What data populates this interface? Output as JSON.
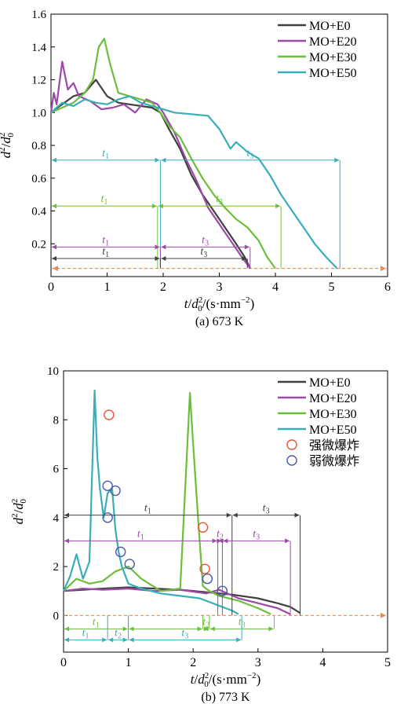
{
  "colors": {
    "MO+E0": "#404040",
    "MO+E20": "#9b4aa8",
    "MO+E30": "#6cbf3c",
    "MO+E50": "#3aaeb8",
    "strong": "#e8553a",
    "weak": "#4a5aa8",
    "dashed": "#f08a4b"
  },
  "chart_data": [
    {
      "type": "line",
      "caption": "(a) 673 K",
      "xlabel": "t/d0²/(s·mm⁻²)",
      "ylabel": "d²/d0²",
      "xlim": [
        0,
        6
      ],
      "ylim": [
        0,
        1.6
      ],
      "xticks": [
        "0",
        "1",
        "2",
        "3",
        "4",
        "5",
        "6"
      ],
      "yticks": [
        "0.2",
        "0.4",
        "0.6",
        "0.8",
        "1.0",
        "1.2",
        "1.4",
        "1.6"
      ],
      "legend_position": "top-right",
      "series": [
        {
          "name": "MO+E0",
          "x": [
            0,
            0.2,
            0.4,
            0.6,
            0.8,
            1.0,
            1.2,
            1.4,
            1.6,
            1.8,
            1.95,
            2.1,
            2.3,
            2.5,
            2.7,
            2.9,
            3.1,
            3.3,
            3.45,
            3.55
          ],
          "y": [
            1.0,
            1.05,
            1.1,
            1.12,
            1.2,
            1.1,
            1.06,
            1.05,
            1.04,
            1.03,
            1.0,
            0.9,
            0.78,
            0.62,
            0.5,
            0.4,
            0.3,
            0.2,
            0.12,
            0.05
          ]
        },
        {
          "name": "MO+E20",
          "x": [
            0,
            0.05,
            0.1,
            0.2,
            0.3,
            0.4,
            0.5,
            0.7,
            0.9,
            1.1,
            1.3,
            1.5,
            1.7,
            1.9,
            2.0,
            2.2,
            2.4,
            2.6,
            2.8,
            3.0,
            3.2,
            3.4,
            3.55
          ],
          "y": [
            1.0,
            1.12,
            1.05,
            1.31,
            1.14,
            1.18,
            1.1,
            1.07,
            1.02,
            1.03,
            1.05,
            1.0,
            1.08,
            1.05,
            1.0,
            0.88,
            0.72,
            0.58,
            0.42,
            0.32,
            0.22,
            0.12,
            0.05
          ]
        },
        {
          "name": "MO+E30",
          "x": [
            0,
            0.2,
            0.4,
            0.6,
            0.75,
            0.85,
            0.95,
            1.05,
            1.2,
            1.4,
            1.6,
            1.8,
            1.95,
            2.1,
            2.3,
            2.5,
            2.7,
            2.9,
            3.1,
            3.3,
            3.5,
            3.7,
            3.85,
            4.0
          ],
          "y": [
            1.0,
            1.03,
            1.06,
            1.12,
            1.2,
            1.4,
            1.45,
            1.3,
            1.12,
            1.1,
            1.08,
            1.06,
            1.0,
            0.92,
            0.85,
            0.72,
            0.6,
            0.5,
            0.42,
            0.35,
            0.3,
            0.22,
            0.12,
            0.05
          ]
        },
        {
          "name": "MO+E50",
          "x": [
            0,
            0.2,
            0.4,
            0.6,
            0.8,
            1.0,
            1.2,
            1.4,
            1.6,
            1.8,
            2.0,
            2.2,
            2.5,
            2.8,
            3.0,
            3.2,
            3.3,
            3.5,
            3.7,
            3.9,
            4.1,
            4.3,
            4.5,
            4.7,
            4.9,
            5.1
          ],
          "y": [
            1.0,
            1.06,
            1.04,
            1.08,
            1.06,
            1.05,
            1.08,
            1.1,
            1.06,
            1.04,
            1.02,
            1.0,
            0.99,
            0.98,
            0.9,
            0.78,
            0.82,
            0.76,
            0.72,
            0.62,
            0.5,
            0.4,
            0.3,
            0.2,
            0.12,
            0.05
          ]
        }
      ],
      "annotations": [
        {
          "series": "MO+E50",
          "y": 0.71,
          "split": 1.95,
          "end": 5.15,
          "labels": [
            "t1",
            "t3"
          ]
        },
        {
          "series": "MO+E30",
          "y": 0.43,
          "split": 1.9,
          "end": 4.1,
          "labels": [
            "t1",
            "t3"
          ]
        },
        {
          "series": "MO+E20",
          "y": 0.18,
          "split": 1.95,
          "end": 3.55,
          "labels": [
            "t1",
            "t3"
          ]
        },
        {
          "series": "MO+E0",
          "y": 0.11,
          "split": 1.95,
          "end": 3.5,
          "labels": [
            "t1",
            "t3"
          ]
        }
      ],
      "reference_line_y": 0.05
    },
    {
      "type": "line",
      "caption": "(b) 773 K",
      "xlabel": "t/d0²/(s·mm⁻²)",
      "ylabel": "d²/d0²",
      "xlim": [
        0,
        5
      ],
      "ylim": [
        -1.5,
        10
      ],
      "xticks": [
        "0",
        "1",
        "2",
        "3",
        "4",
        "5"
      ],
      "yticks": [
        "0",
        "2",
        "4",
        "6",
        "8",
        "10"
      ],
      "legend_position": "top-right",
      "series": [
        {
          "name": "MO+E0",
          "x": [
            0,
            0.3,
            0.6,
            1.0,
            1.4,
            1.8,
            2.2,
            2.6,
            3.0,
            3.3,
            3.5,
            3.65
          ],
          "y": [
            1.0,
            1.05,
            1.1,
            1.15,
            1.1,
            1.05,
            0.95,
            0.85,
            0.7,
            0.5,
            0.35,
            0.1
          ]
        },
        {
          "name": "MO+E20",
          "x": [
            0,
            0.3,
            0.6,
            1.0,
            1.4,
            1.8,
            2.2,
            2.4,
            2.7,
            3.0,
            3.3,
            3.5
          ],
          "y": [
            1.0,
            1.1,
            1.05,
            1.1,
            1.0,
            1.05,
            0.9,
            1.05,
            0.7,
            0.5,
            0.3,
            0.05
          ]
        },
        {
          "name": "MO+E30",
          "x": [
            0,
            0.2,
            0.4,
            0.6,
            0.8,
            1.0,
            1.2,
            1.5,
            1.8,
            1.95,
            2.0,
            2.08,
            2.15,
            2.25,
            2.4,
            2.7,
            3.0,
            3.2
          ],
          "y": [
            1.0,
            1.5,
            1.3,
            1.4,
            1.8,
            2.0,
            1.5,
            1.0,
            1.1,
            9.1,
            7.0,
            3.8,
            1.2,
            1.0,
            0.8,
            0.6,
            0.3,
            0.05
          ]
        },
        {
          "name": "MO+E50",
          "x": [
            0,
            0.1,
            0.2,
            0.3,
            0.4,
            0.48,
            0.52,
            0.56,
            0.62,
            0.68,
            0.75,
            0.8,
            0.85,
            0.9,
            1.0,
            1.2,
            1.5,
            1.8,
            2.1,
            2.4,
            2.6,
            2.7
          ],
          "y": [
            1.0,
            1.6,
            2.5,
            1.5,
            2.2,
            9.2,
            6.5,
            5.2,
            4.0,
            5.0,
            5.2,
            3.5,
            2.6,
            2.0,
            1.3,
            1.1,
            0.9,
            0.8,
            0.7,
            0.4,
            0.2,
            0.05
          ]
        }
      ],
      "strong_micro_explosion": {
        "label": "强微爆炸",
        "points": [
          {
            "x": 0.7,
            "y": 8.2
          },
          {
            "x": 2.15,
            "y": 3.6
          },
          {
            "x": 2.18,
            "y": 1.9
          }
        ]
      },
      "weak_micro_explosion": {
        "label": "弱微爆炸",
        "points": [
          {
            "x": 0.68,
            "y": 5.3
          },
          {
            "x": 0.8,
            "y": 5.1
          },
          {
            "x": 0.68,
            "y": 4.0
          },
          {
            "x": 0.88,
            "y": 2.6
          },
          {
            "x": 1.02,
            "y": 2.1
          },
          {
            "x": 2.22,
            "y": 1.5
          },
          {
            "x": 2.45,
            "y": 1.0
          }
        ]
      },
      "annotations": [
        {
          "series": "MO+E0",
          "y": 4.1,
          "points": [
            0,
            2.6,
            3.65
          ],
          "labels": [
            "t1",
            "t3"
          ]
        },
        {
          "series": "MO+E20",
          "y": 3.05,
          "points": [
            0,
            2.38,
            2.45,
            3.5
          ],
          "labels": [
            "t1",
            "t2",
            "t3"
          ]
        },
        {
          "series": "MO+E30",
          "y": -0.55,
          "points": [
            0,
            1.0,
            2.15,
            2.25,
            3.25
          ],
          "labels": [
            "t1",
            "t2",
            "t3"
          ]
        },
        {
          "series": "MO+E50",
          "y": -1.0,
          "points": [
            0,
            0.68,
            1.0,
            2.75
          ],
          "labels": [
            "t1",
            "t2",
            "t3"
          ]
        }
      ],
      "reference_line_y": 0
    }
  ]
}
